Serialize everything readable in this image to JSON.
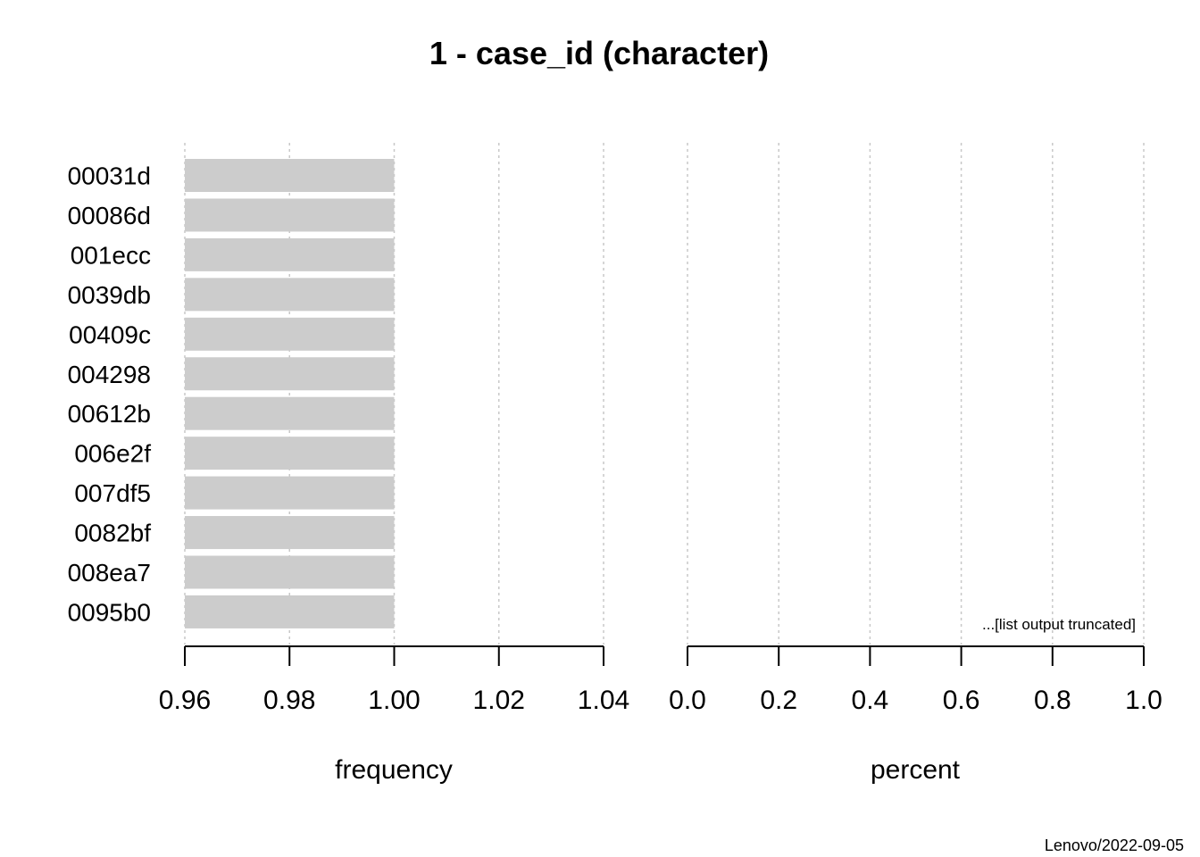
{
  "chart_data": {
    "type": "bar",
    "title": "1 - case_id (character)",
    "categories": [
      "00031d",
      "00086d",
      "001ecc",
      "0039db",
      "00409c",
      "004298",
      "00612b",
      "006e2f",
      "007df5",
      "0082bf",
      "008ea7",
      "0095b0"
    ],
    "panels": [
      {
        "xlabel": "frequency",
        "xlim": [
          0.96,
          1.04
        ],
        "ticks": [
          0.96,
          0.98,
          1.0,
          1.02,
          1.04
        ],
        "tick_labels": [
          "0.96",
          "0.98",
          "1.00",
          "1.02",
          "1.04"
        ],
        "values": [
          1,
          1,
          1,
          1,
          1,
          1,
          1,
          1,
          1,
          1,
          1,
          1
        ]
      },
      {
        "xlabel": "percent",
        "xlim": [
          0.0,
          1.0
        ],
        "ticks": [
          0.0,
          0.2,
          0.4,
          0.6,
          0.8,
          1.0
        ],
        "tick_labels": [
          "0.0",
          "0.2",
          "0.4",
          "0.6",
          "0.8",
          "1.0"
        ]
      }
    ],
    "annotation": "...[list output truncated]",
    "grid": true,
    "bar_color": "#cccccc",
    "grid_color": "#c8c8c8"
  },
  "footer": "Lenovo/2022-09-05"
}
